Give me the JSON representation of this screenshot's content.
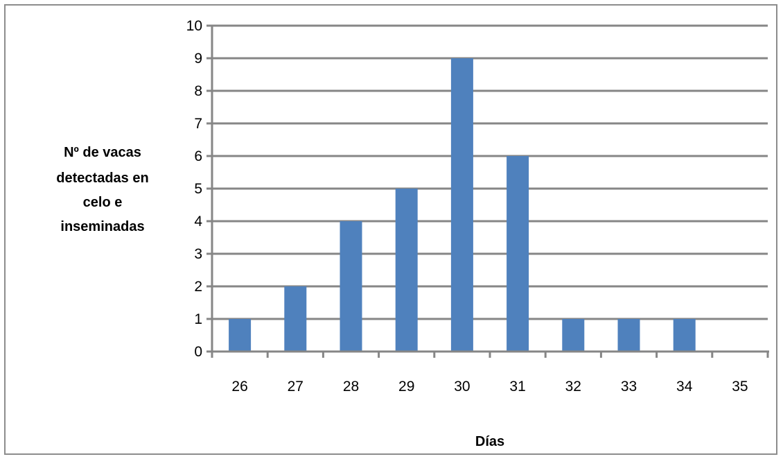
{
  "chart_data": {
    "type": "bar",
    "categories": [
      "26",
      "27",
      "28",
      "29",
      "30",
      "31",
      "32",
      "33",
      "34",
      "35"
    ],
    "values": [
      1,
      2,
      4,
      5,
      9,
      6,
      1,
      1,
      1,
      0
    ],
    "title": "",
    "xlabel": "Días",
    "ylabel_lines": [
      "Nº de vacas",
      "detectadas en",
      "celo e",
      "inseminadas"
    ],
    "ylim": [
      0,
      10
    ],
    "yticks": [
      "0",
      "1",
      "2",
      "3",
      "4",
      "5",
      "6",
      "7",
      "8",
      "9",
      "10"
    ],
    "grid": true,
    "legend": "none",
    "colors": {
      "bar": "#4f81bd",
      "grid": "#868686",
      "axis": "#868686"
    }
  }
}
